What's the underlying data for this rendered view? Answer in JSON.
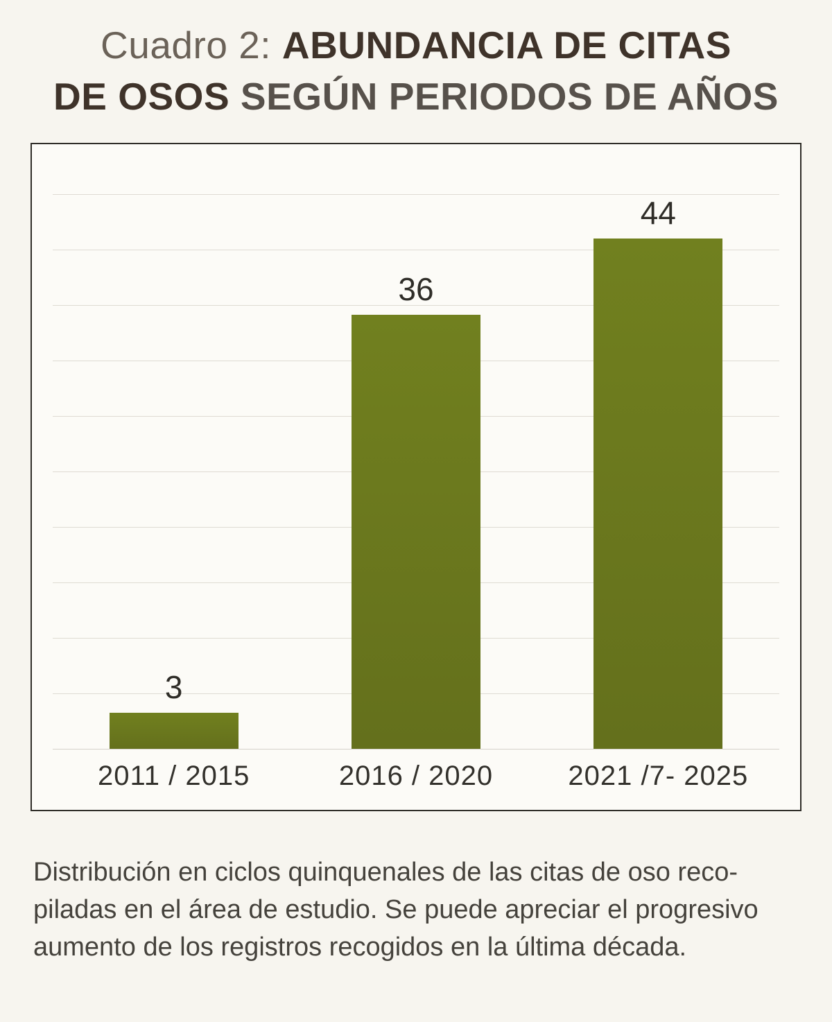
{
  "page": {
    "background_color": "#f7f5ef"
  },
  "title": {
    "line1_regular": "Cuadro 2: ",
    "line1_bold": "ABUNDANCIA DE CITAS",
    "line2_bold": "DE OSOS ",
    "line2_semibold": "SEGÚN PERIODOS DE AÑOS"
  },
  "chart_data": {
    "type": "bar",
    "title": "Cuadro 2: ABUNDANCIA DE CITAS DE OSOS SEGÚN PERIODOS DE AÑOS",
    "categories": [
      "2011 / 2015",
      "2016 / 2020",
      "2021 /7- 2025"
    ],
    "values": [
      3,
      36,
      44
    ],
    "value_labels": [
      "3",
      "36",
      "44"
    ],
    "xlabel": "",
    "ylabel": "",
    "ylim": [
      0,
      46
    ],
    "grid": true,
    "gridline_intervals": 10,
    "legend": "none",
    "bar_color": "#71801f",
    "bar_color_dark": "#64701c",
    "plot_background": "#fcfbf7",
    "box_border_color": "#2f2d28"
  },
  "caption": {
    "line1": "Distribución en ciclos quinquenales de las citas de oso reco-",
    "line2": "piladas en el área de estudio. Se puede apreciar el progresivo",
    "line3": "aumento de los registros recogidos en la última década."
  }
}
